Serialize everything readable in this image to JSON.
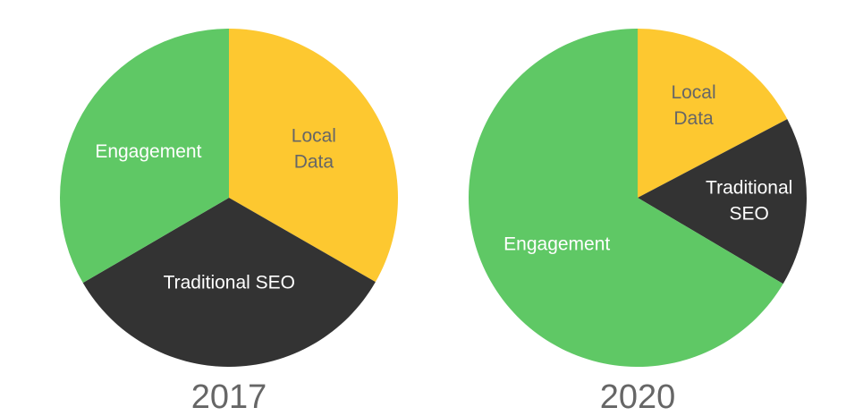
{
  "chart_data": [
    {
      "type": "pie",
      "title": "2017",
      "slices": [
        {
          "label": "Local Data",
          "value": 33.3,
          "color": "#FDC830",
          "text_color": "#666666",
          "label_lines": [
            "Local",
            "Data"
          ]
        },
        {
          "label": "Traditional SEO",
          "value": 33.3,
          "color": "#333333",
          "text_color": "#ffffff",
          "label_lines": [
            "Traditional SEO"
          ]
        },
        {
          "label": "Engagement",
          "value": 33.4,
          "color": "#5FC865",
          "text_color": "#ffffff",
          "label_lines": [
            "Engagement"
          ]
        }
      ],
      "start": "top",
      "direction": "clockwise"
    },
    {
      "type": "pie",
      "title": "2020",
      "slices": [
        {
          "label": "Local Data",
          "value": 17.3,
          "color": "#FDC830",
          "text_color": "#666666",
          "label_lines": [
            "Local",
            "Data"
          ]
        },
        {
          "label": "Traditional SEO",
          "value": 16.2,
          "color": "#333333",
          "text_color": "#ffffff",
          "label_lines": [
            "Traditional",
            "SEO"
          ]
        },
        {
          "label": "Engagement",
          "value": 66.5,
          "color": "#5FC865",
          "text_color": "#ffffff",
          "label_lines": [
            "Engagement"
          ]
        }
      ],
      "start": "top",
      "direction": "clockwise"
    }
  ]
}
